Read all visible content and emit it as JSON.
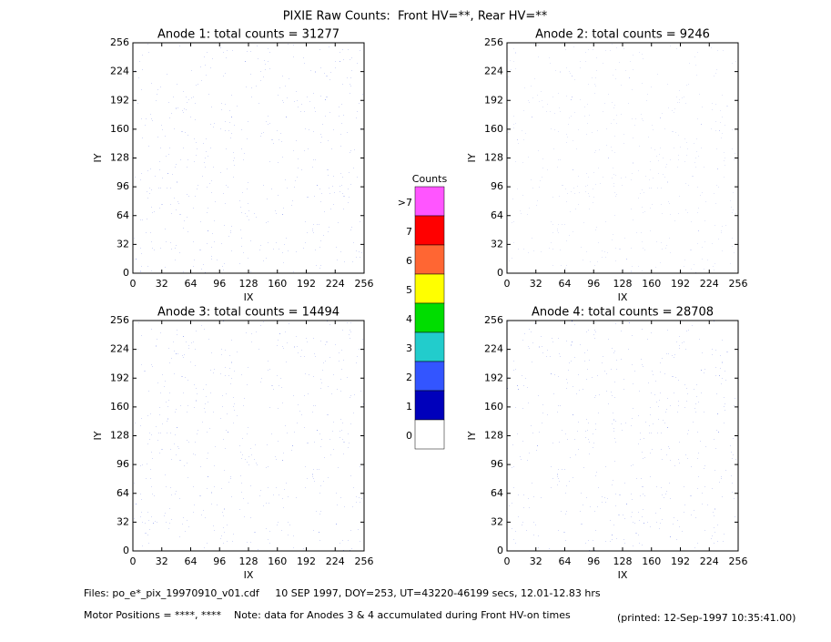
{
  "chart_data": {
    "type": "image-panels",
    "title": "PIXIE Raw Counts:  Front HV=**, Rear HV=**",
    "panels": [
      {
        "title": "Anode 1: total counts = 31277",
        "xlabel": "IX",
        "ylabel": "IY",
        "xlim": [
          0,
          256
        ],
        "ylim": [
          0,
          256
        ],
        "xticks": [
          0,
          32,
          64,
          96,
          128,
          160,
          192,
          224,
          256
        ],
        "yticks": [
          0,
          32,
          64,
          96,
          128,
          160,
          192,
          224,
          256
        ]
      },
      {
        "title": "Anode 2: total counts = 9246",
        "xlabel": "IX",
        "ylabel": "IY",
        "xlim": [
          0,
          256
        ],
        "ylim": [
          0,
          256
        ],
        "xticks": [
          0,
          32,
          64,
          96,
          128,
          160,
          192,
          224,
          256
        ],
        "yticks": [
          0,
          32,
          64,
          96,
          128,
          160,
          192,
          224,
          256
        ]
      },
      {
        "title": "Anode 3: total counts = 14494",
        "xlabel": "IX",
        "ylabel": "IY",
        "xlim": [
          0,
          256
        ],
        "ylim": [
          0,
          256
        ],
        "xticks": [
          0,
          32,
          64,
          96,
          128,
          160,
          192,
          224,
          256
        ],
        "yticks": [
          0,
          32,
          64,
          96,
          128,
          160,
          192,
          224,
          256
        ]
      },
      {
        "title": "Anode 4: total counts = 28708",
        "xlabel": "IX",
        "ylabel": "IY",
        "xlim": [
          0,
          256
        ],
        "ylim": [
          0,
          256
        ],
        "xticks": [
          0,
          32,
          64,
          96,
          128,
          160,
          192,
          224,
          256
        ],
        "yticks": [
          0,
          32,
          64,
          96,
          128,
          160,
          192,
          224,
          256
        ]
      }
    ],
    "colorbar": {
      "title": "Counts",
      "levels": [
        ">7",
        "7",
        "6",
        "5",
        "4",
        "3",
        "2",
        "1",
        "0"
      ],
      "colors": [
        "#ff55ff",
        "#ff0000",
        "#ff6633",
        "#ffff00",
        "#00dd00",
        "#22cccc",
        "#3355ff",
        "#0000bb",
        "#ffffff"
      ]
    },
    "footer": {
      "files": "Files: po_e*_pix_19970910_v01.cdf     10 SEP 1997, DOY=253, UT=43220-46199 secs, 12.01-12.83 hrs",
      "motor": "Motor Positions = ****, ****    Note: data for Anodes 3 & 4 accumulated during Front HV-on times",
      "printed": "(printed: 12-Sep-1997 10:35:41.00)"
    }
  }
}
